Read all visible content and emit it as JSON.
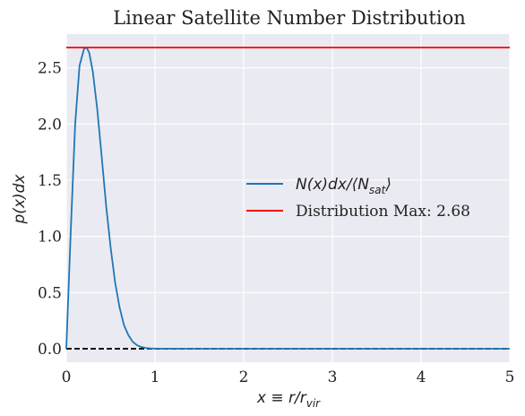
{
  "chart_data": {
    "type": "line",
    "title": "Linear Satellite Number Distribution",
    "xlabel": "x ≡ r/r",
    "xlabel_sub": "vir",
    "ylabel": "p(x)dx",
    "xlim": [
      0,
      5
    ],
    "ylim": [
      -0.12,
      2.8
    ],
    "xticks": [
      0,
      1,
      2,
      3,
      4,
      5
    ],
    "xtick_labels": [
      "0",
      "1",
      "2",
      "3",
      "4",
      "5"
    ],
    "yticks": [
      0.0,
      0.5,
      1.0,
      1.5,
      2.0,
      2.5
    ],
    "ytick_labels": [
      "0.0",
      "0.5",
      "1.0",
      "1.5",
      "2.0",
      "2.5"
    ],
    "grid": true,
    "legend_position": "center-right",
    "series": [
      {
        "name": "N(x)dx/⟨N",
        "name_sub": "sat",
        "name_suffix": "⟩",
        "color": "#1f77b4",
        "x": [
          0,
          0.05,
          0.1,
          0.15,
          0.2,
          0.23,
          0.26,
          0.3,
          0.35,
          0.4,
          0.45,
          0.5,
          0.55,
          0.6,
          0.65,
          0.7,
          0.75,
          0.8,
          0.85,
          0.9,
          0.95,
          1.0,
          1.1,
          1.2,
          1.5,
          2,
          3,
          4,
          5
        ],
        "y": [
          0,
          1.05,
          2.0,
          2.52,
          2.67,
          2.68,
          2.63,
          2.46,
          2.12,
          1.7,
          1.27,
          0.9,
          0.59,
          0.37,
          0.21,
          0.12,
          0.06,
          0.03,
          0.015,
          0.007,
          0.003,
          0.001,
          0.0003,
          0.0001,
          0,
          0,
          0,
          0,
          0
        ]
      },
      {
        "name": "Distribution Max: 2.68",
        "color": "#ff0000",
        "x": [
          0,
          5
        ],
        "y": [
          2.68,
          2.68
        ]
      }
    ],
    "reference_lines": [
      {
        "y": 0,
        "color": "#000000",
        "style": "dashed"
      }
    ]
  },
  "colors": {
    "plot_background": "#eaeaf2",
    "grid": "#ffffff"
  }
}
